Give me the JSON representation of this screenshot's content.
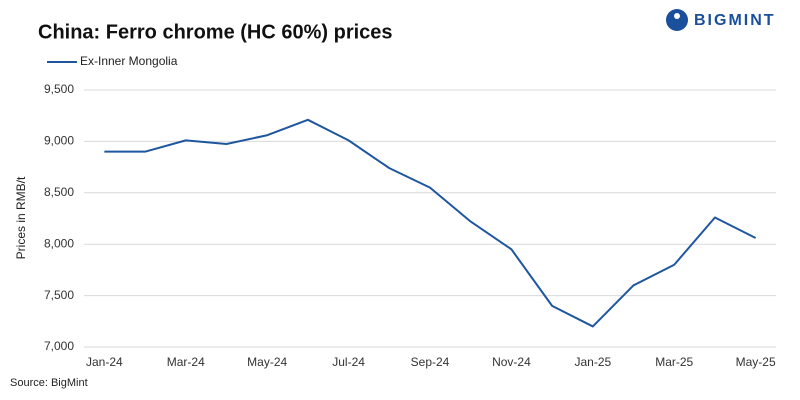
{
  "chart_data": {
    "type": "line",
    "title": "China: Ferro chrome (HC 60%) prices",
    "logo": "BIGMINT",
    "y_label": "Prices in RMB/t",
    "source": "Source: BigMint",
    "categories": [
      "Jan-24",
      null,
      "Mar-24",
      null,
      "May-24",
      null,
      "Jul-24",
      null,
      "Sep-24",
      null,
      "Nov-24",
      null,
      "Jan-25",
      null,
      "Mar-25",
      null,
      "May-25"
    ],
    "series": [
      {
        "name": "Ex-Inner Mongolia",
        "color": "#1f56a0",
        "values": [
          8900,
          8900,
          9010,
          8975,
          9060,
          9210,
          9010,
          8740,
          8550,
          8220,
          7950,
          7400,
          7200,
          7600,
          7800,
          8260,
          8060
        ]
      }
    ],
    "ylim": [
      7000,
      9500
    ],
    "yticks": [
      {
        "value": 7000,
        "label": "7,000"
      },
      {
        "value": 7500,
        "label": "7,500"
      },
      {
        "value": 8000,
        "label": "8,000"
      },
      {
        "value": 8500,
        "label": "8,500"
      },
      {
        "value": 9000,
        "label": "9,000"
      },
      {
        "value": 9500,
        "label": "9,500"
      }
    ],
    "grid": true
  }
}
